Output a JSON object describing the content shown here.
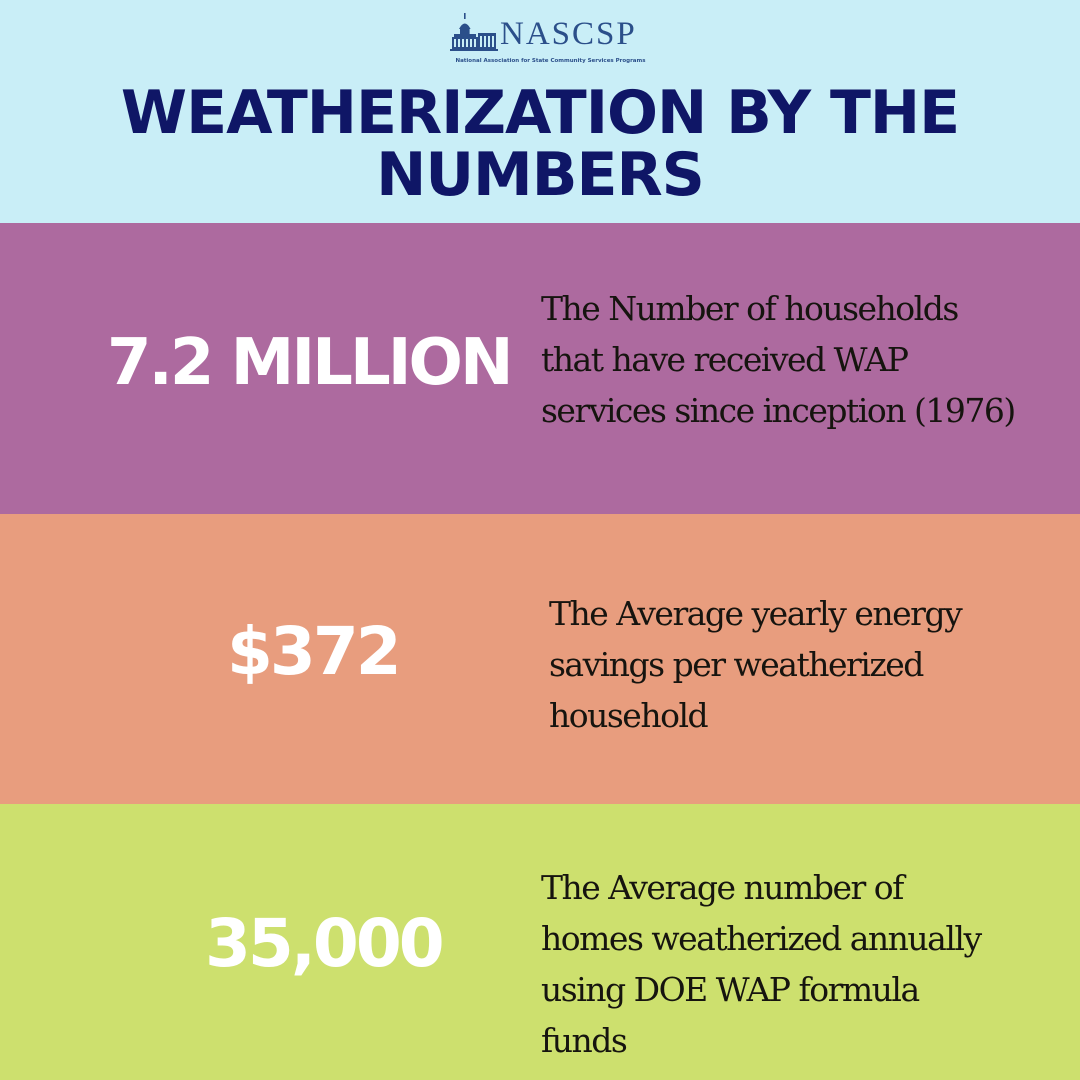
{
  "header": {
    "logo": {
      "name": "NASCSP",
      "subtitle": "National Association for State Community Services Programs"
    },
    "title": "WEATHERIZATION BY THE NUMBERS"
  },
  "stats": [
    {
      "value": "7.2 MILLION",
      "description": "The Number of households\nthat have received WAP\nservices since inception (1976)"
    },
    {
      "value": "$372",
      "description": "The Average yearly energy\nsavings per weatherized\nhousehold"
    },
    {
      "value": "35,000",
      "description": "The  Average number of\nhomes weatherized annually\nusing  DOE WAP formula\nfunds"
    }
  ],
  "colors": {
    "header_bg": "#c9eef7",
    "title": "#0f1666",
    "band_1": "#ad6a9f",
    "band_2": "#e89d7e",
    "band_3": "#cde06e",
    "stat_text": "#ffffff",
    "desc_text": "#16140f",
    "logo": "#2b4f8a"
  },
  "icons": {
    "logo_mark": "capitol-building-icon"
  }
}
